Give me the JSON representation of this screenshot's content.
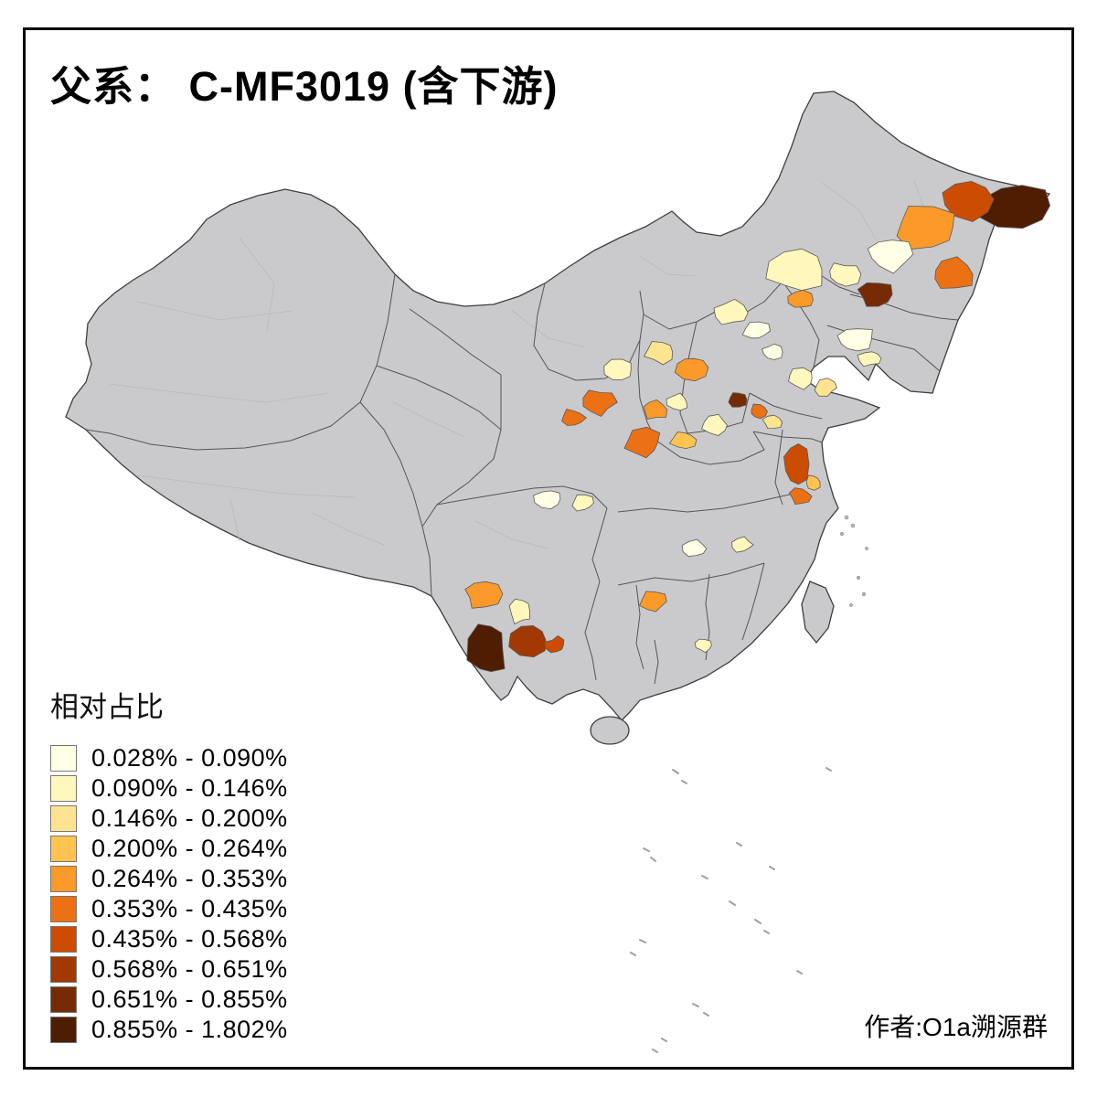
{
  "title": "父系： C-MF3019 (含下游)",
  "legend": {
    "title": "相对占比",
    "classes": [
      {
        "label": "0.028% - 0.090%",
        "color": "#FFFFE5"
      },
      {
        "label": "0.090% - 0.146%",
        "color": "#FFF7BC"
      },
      {
        "label": "0.146% - 0.200%",
        "color": "#FEE391"
      },
      {
        "label": "0.200% - 0.264%",
        "color": "#FEC44F"
      },
      {
        "label": "0.264% - 0.353%",
        "color": "#FB9A29"
      },
      {
        "label": "0.353% - 0.435%",
        "color": "#EC7014"
      },
      {
        "label": "0.435% - 0.568%",
        "color": "#CC4C02"
      },
      {
        "label": "0.568% - 0.651%",
        "color": "#A23903"
      },
      {
        "label": "0.651% - 0.855%",
        "color": "#762B05"
      },
      {
        "label": "0.855% - 1.802%",
        "color": "#4F1D02"
      }
    ]
  },
  "attribution": "作者:O1a溯源群",
  "map": {
    "land_color": "#CACACC",
    "boundary_color": "#4E4E50",
    "background": "#FFFFFF",
    "regions": [
      {
        "id": "heilongjiang-ne-tip",
        "class": 10,
        "geom": [
          1112,
          225,
          40,
          26
        ]
      },
      {
        "id": "heilongjiang-ne-inner",
        "class": 7,
        "geom": [
          1058,
          218,
          30,
          22
        ]
      },
      {
        "id": "heilongjiang-north",
        "class": 5,
        "geom": [
          1015,
          250,
          36,
          24
        ]
      },
      {
        "id": "heilongjiang-central",
        "class": 1,
        "geom": [
          972,
          278,
          25,
          18
        ]
      },
      {
        "id": "heilongjiang-east",
        "class": 6,
        "geom": [
          1042,
          300,
          26,
          18
        ]
      },
      {
        "id": "jilin-east-dark",
        "class": 9,
        "geom": [
          958,
          322,
          20,
          15
        ]
      },
      {
        "id": "jilin-west-pale",
        "class": 2,
        "geom": [
          922,
          300,
          18,
          13
        ]
      },
      {
        "id": "inner-mongolia-east-pale",
        "class": 2,
        "geom": [
          872,
          295,
          32,
          25
        ]
      },
      {
        "id": "inner-mongolia-east-orange",
        "class": 5,
        "geom": [
          876,
          328,
          14,
          10
        ]
      },
      {
        "id": "liaoning-pale-a",
        "class": 1,
        "geom": [
          935,
          372,
          21,
          15
        ]
      },
      {
        "id": "liaoning-pale-b",
        "class": 2,
        "geom": [
          952,
          392,
          13,
          9
        ]
      },
      {
        "id": "hebei-north-pale",
        "class": 2,
        "geom": [
          800,
          342,
          18,
          13
        ]
      },
      {
        "id": "beijing-pale",
        "class": 1,
        "geom": [
          828,
          362,
          14,
          10
        ]
      },
      {
        "id": "beijing-south-pale",
        "class": 1,
        "geom": [
          845,
          385,
          12,
          9
        ]
      },
      {
        "id": "hebei-nw-gold",
        "class": 5,
        "geom": [
          757,
          402,
          17,
          13
        ]
      },
      {
        "id": "shanxi-north-pale",
        "class": 3,
        "geom": [
          722,
          385,
          16,
          12
        ]
      },
      {
        "id": "shaanxi-north-cream",
        "class": 2,
        "geom": [
          678,
          405,
          16,
          12
        ]
      },
      {
        "id": "shaanxi-orange-a",
        "class": 6,
        "geom": [
          654,
          440,
          18,
          14
        ]
      },
      {
        "id": "ningxia-orange",
        "class": 6,
        "geom": [
          627,
          457,
          13,
          10
        ]
      },
      {
        "id": "shanxi-mid-gold",
        "class": 5,
        "geom": [
          716,
          448,
          14,
          11
        ]
      },
      {
        "id": "shanxi-mid-pale",
        "class": 2,
        "geom": [
          742,
          440,
          12,
          9
        ]
      },
      {
        "id": "henan-north-dark",
        "class": 9,
        "geom": [
          807,
          437,
          11,
          9
        ]
      },
      {
        "id": "henan-north-orange",
        "class": 6,
        "geom": [
          830,
          450,
          10,
          8
        ]
      },
      {
        "id": "hebei-south-pale",
        "class": 2,
        "geom": [
          783,
          465,
          14,
          10
        ]
      },
      {
        "id": "shaanxi-guanzhong-orange",
        "class": 6,
        "geom": [
          703,
          485,
          22,
          16
        ]
      },
      {
        "id": "henan-west-gold",
        "class": 4,
        "geom": [
          748,
          481,
          14,
          10
        ]
      },
      {
        "id": "shandong-pale-a",
        "class": 2,
        "geom": [
          876,
          414,
          16,
          11
        ]
      },
      {
        "id": "shandong-pale-b",
        "class": 3,
        "geom": [
          903,
          424,
          12,
          9
        ]
      },
      {
        "id": "henan-east-pale",
        "class": 3,
        "geom": [
          845,
          462,
          11,
          8
        ]
      },
      {
        "id": "jiangsu-north-strong",
        "class": 7,
        "geom": [
          871,
          508,
          13,
          22
        ]
      },
      {
        "id": "jiangsu-mid-orange",
        "class": 6,
        "geom": [
          876,
          543,
          12,
          10
        ]
      },
      {
        "id": "jiangsu-gold",
        "class": 4,
        "geom": [
          889,
          527,
          9,
          8
        ]
      },
      {
        "id": "sichuan-cream-a",
        "class": 1,
        "geom": [
          600,
          546,
          16,
          11
        ]
      },
      {
        "id": "sichuan-cream-b",
        "class": 2,
        "geom": [
          638,
          550,
          12,
          9
        ]
      },
      {
        "id": "hubei-cream",
        "class": 1,
        "geom": [
          760,
          600,
          13,
          9
        ]
      },
      {
        "id": "hubei-east-pale",
        "class": 2,
        "geom": [
          812,
          596,
          11,
          8
        ]
      },
      {
        "id": "guizhou-gold",
        "class": 5,
        "geom": [
          715,
          658,
          14,
          11
        ]
      },
      {
        "id": "hunan-south-pale",
        "class": 2,
        "geom": [
          770,
          706,
          9,
          7
        ]
      },
      {
        "id": "yunnan-nw-gold",
        "class": 5,
        "geom": [
          528,
          650,
          20,
          15
        ]
      },
      {
        "id": "yunnan-mid-pale",
        "class": 2,
        "geom": [
          570,
          668,
          12,
          14
        ]
      },
      {
        "id": "yunnan-west-darkest",
        "class": 10,
        "geom": [
          534,
          710,
          21,
          30
        ]
      },
      {
        "id": "yunnan-central-brown",
        "class": 8,
        "geom": [
          580,
          700,
          21,
          18
        ]
      },
      {
        "id": "yunnan-east-orange",
        "class": 7,
        "geom": [
          608,
          706,
          11,
          9
        ]
      }
    ]
  }
}
